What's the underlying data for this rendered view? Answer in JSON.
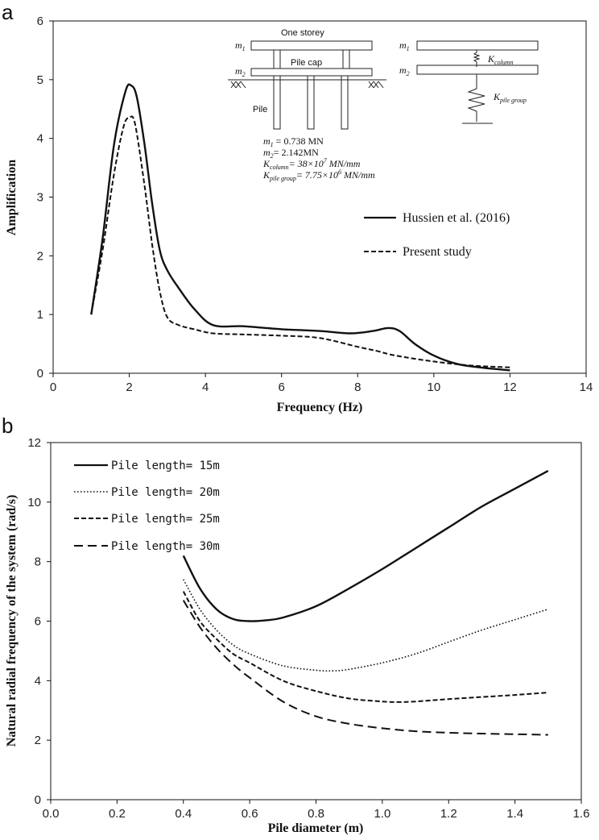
{
  "chart_data": [
    {
      "panel": "a",
      "type": "line",
      "title": "",
      "xlabel": "Frequency  (Hz)",
      "ylabel": "Amplification",
      "xlim": [
        0,
        14
      ],
      "ylim": [
        0,
        6
      ],
      "xticks": [
        "0",
        "2",
        "4",
        "6",
        "8",
        "10",
        "12",
        "14"
      ],
      "yticks": [
        "0",
        "1",
        "2",
        "3",
        "4",
        "5",
        "6"
      ],
      "grid": false,
      "legend_position": "right",
      "series": [
        {
          "name": "Hussien et al. (2016)",
          "style": "solid",
          "x": [
            1.0,
            1.3,
            1.6,
            1.9,
            2.05,
            2.2,
            2.4,
            2.6,
            2.8,
            3.0,
            3.3,
            3.7,
            4.2,
            5.0,
            6.0,
            7.0,
            7.8,
            8.4,
            8.8,
            9.1,
            9.5,
            10.0,
            10.6,
            11.2,
            12.0
          ],
          "y": [
            1.0,
            2.3,
            3.9,
            4.8,
            4.9,
            4.7,
            3.9,
            2.9,
            2.1,
            1.75,
            1.45,
            1.1,
            0.82,
            0.8,
            0.75,
            0.72,
            0.68,
            0.72,
            0.77,
            0.72,
            0.5,
            0.3,
            0.16,
            0.1,
            0.05
          ]
        },
        {
          "name": "Present study",
          "style": "dashed",
          "x": [
            1.0,
            1.3,
            1.6,
            1.85,
            2.0,
            2.15,
            2.4,
            2.6,
            2.8,
            3.0,
            3.3,
            3.7,
            4.2,
            5.0,
            6.0,
            7.0,
            8.0,
            8.5,
            9.0,
            10.0,
            11.0,
            12.0
          ],
          "y": [
            1.0,
            2.1,
            3.4,
            4.2,
            4.35,
            4.25,
            3.2,
            2.2,
            1.4,
            0.95,
            0.82,
            0.75,
            0.68,
            0.66,
            0.64,
            0.6,
            0.45,
            0.38,
            0.3,
            0.2,
            0.13,
            0.1
          ]
        }
      ],
      "inset": {
        "one_storey": "One storey",
        "pile_cap": "Pile cap",
        "pile": "Pile",
        "m1": "m",
        "m1_sub": "1",
        "m2": "m",
        "m2_sub": "2",
        "k_column": "K",
        "k_column_sub": "column",
        "k_pile_group": "K",
        "k_pile_group_sub": "pile group",
        "params": [
          {
            "sym": "m",
            "sub": "1",
            "text": " = 0.738 MN"
          },
          {
            "sym": "m",
            "sub": "2",
            "text": "= 2.142MN"
          },
          {
            "sym": "K",
            "sub": "column",
            "text": "= 38×10",
            "sup": "7",
            "tail": " MN/mm"
          },
          {
            "sym": "K",
            "sub": "pile group",
            "text": "= 7.75×10",
            "sup": "6",
            "tail": " MN/mm"
          }
        ]
      }
    },
    {
      "panel": "b",
      "type": "line",
      "title": "",
      "xlabel": "Pile diameter (m)",
      "ylabel": "Natural radial frequency of the system (rad/s)",
      "xlim": [
        0,
        1.6
      ],
      "ylim": [
        0,
        12
      ],
      "xticks": [
        "0.0",
        "0.2",
        "0.4",
        "0.6",
        "0.8",
        "1.0",
        "1.2",
        "1.4",
        "1.6"
      ],
      "yticks": [
        "0",
        "2",
        "4",
        "6",
        "8",
        "10",
        "12"
      ],
      "grid": false,
      "legend_position": "top-left",
      "series": [
        {
          "name": "Pile length= 15m",
          "style": "solid",
          "x": [
            0.4,
            0.45,
            0.5,
            0.55,
            0.6,
            0.65,
            0.7,
            0.8,
            0.9,
            1.0,
            1.1,
            1.2,
            1.3,
            1.4,
            1.5
          ],
          "y": [
            8.2,
            7.1,
            6.4,
            6.07,
            6.0,
            6.03,
            6.12,
            6.5,
            7.1,
            7.75,
            8.45,
            9.15,
            9.85,
            10.45,
            11.05
          ]
        },
        {
          "name": "Pile length= 20m",
          "style": "dotted",
          "x": [
            0.4,
            0.45,
            0.5,
            0.55,
            0.6,
            0.7,
            0.8,
            0.85,
            0.9,
            1.0,
            1.1,
            1.2,
            1.3,
            1.4,
            1.5
          ],
          "y": [
            7.4,
            6.4,
            5.7,
            5.2,
            4.9,
            4.5,
            4.35,
            4.33,
            4.38,
            4.6,
            4.9,
            5.3,
            5.7,
            6.05,
            6.4
          ]
        },
        {
          "name": "Pile length= 25m",
          "style": "dashed",
          "x": [
            0.4,
            0.45,
            0.5,
            0.55,
            0.6,
            0.7,
            0.8,
            0.9,
            1.0,
            1.05,
            1.1,
            1.2,
            1.3,
            1.4,
            1.5
          ],
          "y": [
            7.0,
            6.0,
            5.4,
            4.9,
            4.6,
            4.0,
            3.65,
            3.4,
            3.3,
            3.28,
            3.3,
            3.38,
            3.45,
            3.52,
            3.6
          ]
        },
        {
          "name": "Pile length= 30m",
          "style": "longdash",
          "x": [
            0.4,
            0.45,
            0.5,
            0.55,
            0.6,
            0.7,
            0.8,
            0.9,
            1.0,
            1.1,
            1.2,
            1.3,
            1.4,
            1.5
          ],
          "y": [
            6.7,
            5.8,
            5.1,
            4.55,
            4.1,
            3.3,
            2.8,
            2.55,
            2.4,
            2.3,
            2.25,
            2.22,
            2.2,
            2.18
          ]
        }
      ]
    }
  ],
  "panels": {
    "a_label": "a",
    "b_label": "b"
  }
}
